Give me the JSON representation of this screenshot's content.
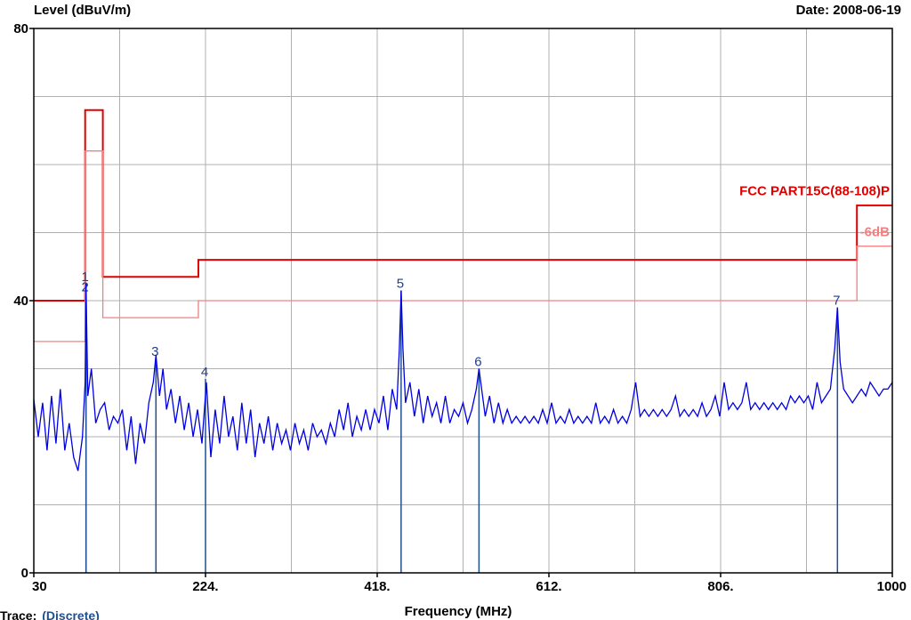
{
  "header": {
    "ylabel": "Level (dBuV/m)",
    "date": "Date: 2008-06-19"
  },
  "footer": {
    "trace_label": "Trace:",
    "trace_value": "(Discrete)"
  },
  "colors": {
    "grid": "#b0b0b0",
    "limit": "#e00000",
    "limit_minus6": "#f08080",
    "trace": "#0000e0",
    "marker": "#1f4f90",
    "marker_text": "#1f3f88"
  },
  "chart_data": {
    "type": "line",
    "xlabel": "Frequency (MHz)",
    "ylabel": "Level (dBuV/m)",
    "xlim": [
      30,
      1000
    ],
    "ylim": [
      0,
      80
    ],
    "x_ticks": [
      30,
      224,
      418,
      612,
      806,
      1000
    ],
    "x_tick_labels": [
      "30",
      "224.",
      "418.",
      "612.",
      "806.",
      "1000"
    ],
    "y_ticks": [
      0,
      40,
      80
    ],
    "y_tick_labels": [
      "0",
      "40",
      "80"
    ],
    "grid": true,
    "series": [
      {
        "name": "FCC PART15C(88-108)P",
        "style": "limit",
        "points": [
          [
            30,
            40
          ],
          [
            88,
            40
          ],
          [
            88,
            68
          ],
          [
            108,
            68
          ],
          [
            108,
            43.5
          ],
          [
            216,
            43.5
          ],
          [
            216,
            46
          ],
          [
            960,
            46
          ],
          [
            960,
            54
          ],
          [
            1000,
            54
          ]
        ]
      },
      {
        "name": "-6dB",
        "style": "limit_minus6",
        "points": [
          [
            30,
            34
          ],
          [
            88,
            34
          ],
          [
            88,
            62
          ],
          [
            108,
            62
          ],
          [
            108,
            37.5
          ],
          [
            216,
            37.5
          ],
          [
            216,
            40
          ],
          [
            960,
            40
          ],
          [
            960,
            48
          ],
          [
            1000,
            48
          ]
        ]
      },
      {
        "name": "",
        "style": "trace",
        "points": [
          [
            30,
            25.5
          ],
          [
            35,
            20
          ],
          [
            40,
            25
          ],
          [
            45,
            18
          ],
          [
            50,
            26
          ],
          [
            55,
            19
          ],
          [
            60,
            27
          ],
          [
            65,
            18
          ],
          [
            70,
            22
          ],
          [
            75,
            17
          ],
          [
            80,
            15
          ],
          [
            85,
            20
          ],
          [
            88,
            28
          ],
          [
            89,
            42.5
          ],
          [
            91,
            26
          ],
          [
            95,
            30
          ],
          [
            100,
            22
          ],
          [
            105,
            24
          ],
          [
            110,
            25
          ],
          [
            115,
            21
          ],
          [
            120,
            23
          ],
          [
            125,
            22
          ],
          [
            130,
            24
          ],
          [
            135,
            18
          ],
          [
            140,
            23
          ],
          [
            145,
            16
          ],
          [
            150,
            22
          ],
          [
            155,
            19
          ],
          [
            160,
            25
          ],
          [
            165,
            28
          ],
          [
            168,
            32
          ],
          [
            172,
            26
          ],
          [
            176,
            30
          ],
          [
            180,
            24
          ],
          [
            185,
            27
          ],
          [
            190,
            22
          ],
          [
            195,
            26
          ],
          [
            200,
            21
          ],
          [
            205,
            25
          ],
          [
            210,
            20
          ],
          [
            215,
            24
          ],
          [
            220,
            19
          ],
          [
            225,
            28
          ],
          [
            230,
            17
          ],
          [
            235,
            24
          ],
          [
            240,
            19
          ],
          [
            245,
            26
          ],
          [
            250,
            20
          ],
          [
            255,
            23
          ],
          [
            260,
            18
          ],
          [
            265,
            25
          ],
          [
            270,
            19
          ],
          [
            275,
            24
          ],
          [
            280,
            17
          ],
          [
            285,
            22
          ],
          [
            290,
            19
          ],
          [
            295,
            23
          ],
          [
            300,
            18
          ],
          [
            305,
            22
          ],
          [
            310,
            19
          ],
          [
            315,
            21
          ],
          [
            320,
            18
          ],
          [
            325,
            22
          ],
          [
            330,
            19
          ],
          [
            335,
            21
          ],
          [
            340,
            18
          ],
          [
            345,
            22
          ],
          [
            350,
            20
          ],
          [
            355,
            21
          ],
          [
            360,
            19
          ],
          [
            365,
            22
          ],
          [
            370,
            20
          ],
          [
            375,
            24
          ],
          [
            380,
            21
          ],
          [
            385,
            25
          ],
          [
            390,
            20
          ],
          [
            395,
            23
          ],
          [
            400,
            21
          ],
          [
            405,
            24
          ],
          [
            410,
            21
          ],
          [
            415,
            24
          ],
          [
            420,
            22
          ],
          [
            425,
            26
          ],
          [
            430,
            21
          ],
          [
            435,
            27
          ],
          [
            440,
            24
          ],
          [
            443,
            33
          ],
          [
            445,
            41.5
          ],
          [
            447,
            33
          ],
          [
            450,
            25
          ],
          [
            455,
            28
          ],
          [
            460,
            23
          ],
          [
            465,
            27
          ],
          [
            470,
            22
          ],
          [
            475,
            26
          ],
          [
            480,
            23
          ],
          [
            485,
            25
          ],
          [
            490,
            22
          ],
          [
            495,
            26
          ],
          [
            500,
            22
          ],
          [
            505,
            24
          ],
          [
            510,
            23
          ],
          [
            515,
            25
          ],
          [
            520,
            22
          ],
          [
            525,
            24
          ],
          [
            530,
            27
          ],
          [
            533,
            30
          ],
          [
            536,
            27
          ],
          [
            540,
            23
          ],
          [
            545,
            26
          ],
          [
            550,
            22
          ],
          [
            555,
            25
          ],
          [
            560,
            22
          ],
          [
            565,
            24
          ],
          [
            570,
            22
          ],
          [
            575,
            23
          ],
          [
            580,
            22
          ],
          [
            585,
            23
          ],
          [
            590,
            22
          ],
          [
            595,
            23
          ],
          [
            600,
            22
          ],
          [
            605,
            24
          ],
          [
            610,
            22
          ],
          [
            615,
            25
          ],
          [
            620,
            22
          ],
          [
            625,
            23
          ],
          [
            630,
            22
          ],
          [
            635,
            24
          ],
          [
            640,
            22
          ],
          [
            645,
            23
          ],
          [
            650,
            22
          ],
          [
            655,
            23
          ],
          [
            660,
            22
          ],
          [
            665,
            25
          ],
          [
            670,
            22
          ],
          [
            675,
            23
          ],
          [
            680,
            22
          ],
          [
            685,
            24
          ],
          [
            690,
            22
          ],
          [
            695,
            23
          ],
          [
            700,
            22
          ],
          [
            705,
            24
          ],
          [
            710,
            28
          ],
          [
            715,
            23
          ],
          [
            720,
            24
          ],
          [
            725,
            23
          ],
          [
            730,
            24
          ],
          [
            735,
            23
          ],
          [
            740,
            24
          ],
          [
            745,
            23
          ],
          [
            750,
            24
          ],
          [
            755,
            26
          ],
          [
            760,
            23
          ],
          [
            765,
            24
          ],
          [
            770,
            23
          ],
          [
            775,
            24
          ],
          [
            780,
            23
          ],
          [
            785,
            25
          ],
          [
            790,
            23
          ],
          [
            795,
            24
          ],
          [
            800,
            26
          ],
          [
            805,
            23
          ],
          [
            810,
            28
          ],
          [
            815,
            24
          ],
          [
            820,
            25
          ],
          [
            825,
            24
          ],
          [
            830,
            25
          ],
          [
            835,
            28
          ],
          [
            840,
            24
          ],
          [
            845,
            25
          ],
          [
            850,
            24
          ],
          [
            855,
            25
          ],
          [
            860,
            24
          ],
          [
            865,
            25
          ],
          [
            870,
            24
          ],
          [
            875,
            25
          ],
          [
            880,
            24
          ],
          [
            885,
            26
          ],
          [
            890,
            25
          ],
          [
            895,
            26
          ],
          [
            900,
            25
          ],
          [
            905,
            26
          ],
          [
            910,
            24
          ],
          [
            915,
            28
          ],
          [
            920,
            25
          ],
          [
            925,
            26
          ],
          [
            930,
            27
          ],
          [
            935,
            33
          ],
          [
            938,
            39
          ],
          [
            941,
            31
          ],
          [
            945,
            27
          ],
          [
            950,
            26
          ],
          [
            955,
            25
          ],
          [
            960,
            26
          ],
          [
            965,
            27
          ],
          [
            970,
            26
          ],
          [
            975,
            28
          ],
          [
            980,
            27
          ],
          [
            985,
            26
          ],
          [
            990,
            27
          ],
          [
            995,
            27
          ],
          [
            1000,
            28
          ]
        ]
      }
    ],
    "markers": [
      {
        "label": "1",
        "freq": 89,
        "level": 42.5
      },
      {
        "label": "2",
        "freq": 89,
        "level": 41
      },
      {
        "label": "3",
        "freq": 168,
        "level": 31.5
      },
      {
        "label": "4",
        "freq": 224,
        "level": 28.5
      },
      {
        "label": "5",
        "freq": 445,
        "level": 41.5
      },
      {
        "label": "6",
        "freq": 533,
        "level": 30
      },
      {
        "label": "7",
        "freq": 938,
        "level": 39
      }
    ]
  }
}
